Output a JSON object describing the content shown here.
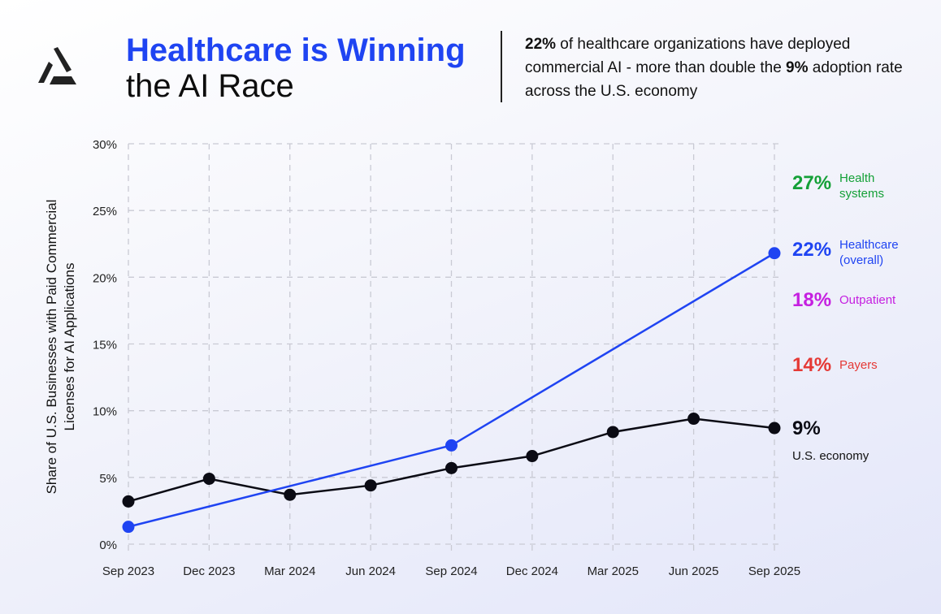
{
  "header": {
    "logo": "stylized triangle logo",
    "title_line1": "Healthcare is Winning",
    "title_line2": "the AI Race",
    "summary": {
      "bold1": "22%",
      "text1": " of healthcare organizations have deployed commercial AI - more than double the ",
      "bold2": "9%",
      "text2": " adoption rate across the U.S. economy"
    }
  },
  "chart_data": {
    "type": "line",
    "title": "",
    "xlabel": "",
    "ylabel": "Share of U.S. Businesses with Paid Commercial Licenses for AI Applications",
    "ylim": [
      0,
      30
    ],
    "yticks": [
      "0%",
      "5%",
      "10%",
      "15%",
      "20%",
      "25%",
      "30%"
    ],
    "ytick_values": [
      0,
      5,
      10,
      15,
      20,
      25,
      30
    ],
    "categories": [
      "Sep 2023",
      "Dec 2023",
      "Mar 2024",
      "Jun 2024",
      "Sep 2024",
      "Dec 2024",
      "Mar 2025",
      "Jun 2025",
      "Sep 2025"
    ],
    "grid": true,
    "series": [
      {
        "name": "U.S. economy",
        "color": "#0b0b14",
        "values": [
          3.2,
          4.9,
          3.7,
          4.4,
          5.7,
          6.6,
          8.4,
          9.4,
          8.7
        ]
      },
      {
        "name": "Healthcare (overall)",
        "color": "#1f44f2",
        "values": [
          1.3,
          null,
          null,
          null,
          7.4,
          null,
          null,
          null,
          21.8
        ]
      }
    ],
    "annotations": [
      {
        "value": "27%",
        "label": "Health systems",
        "color": "#14a037"
      },
      {
        "value": "22%",
        "label": "Healthcare (overall)",
        "color": "#1f44f2"
      },
      {
        "value": "18%",
        "label": "Outpatient",
        "color": "#c520e0"
      },
      {
        "value": "14%",
        "label": "Payers",
        "color": "#e53935"
      },
      {
        "value": "9%",
        "label": "U.S. economy",
        "color": "#0b0b14"
      }
    ]
  }
}
